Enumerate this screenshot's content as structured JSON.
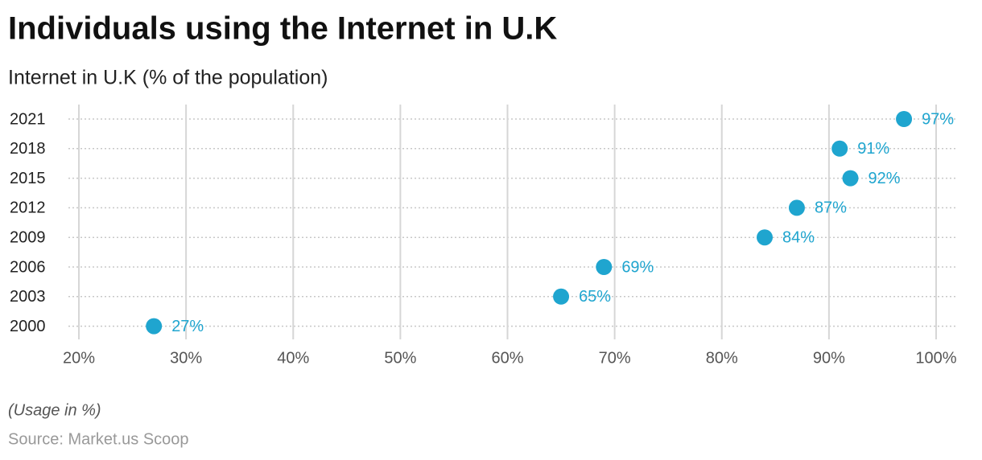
{
  "chart_data": {
    "type": "dot",
    "title": "Individuals using the Internet in U.K",
    "subtitle": "Internet in U.K (% of the population)",
    "note": "(Usage in %)",
    "source": "Source: Market.us Scoop",
    "categories": [
      "2021",
      "2018",
      "2015",
      "2012",
      "2009",
      "2006",
      "2003",
      "2000"
    ],
    "values": [
      97,
      91,
      92,
      87,
      84,
      69,
      65,
      27
    ],
    "value_labels": [
      "97%",
      "91%",
      "92%",
      "87%",
      "84%",
      "69%",
      "65%",
      "27%"
    ],
    "color": "#1fa5cf",
    "xlim": [
      20,
      100
    ],
    "xticks": [
      {
        "value": 20,
        "label": "20%"
      },
      {
        "value": 30,
        "label": "30%"
      },
      {
        "value": 40,
        "label": "40%"
      },
      {
        "value": 50,
        "label": "50%"
      },
      {
        "value": 60,
        "label": "60%"
      },
      {
        "value": 70,
        "label": "70%"
      },
      {
        "value": 80,
        "label": "80%"
      },
      {
        "value": 90,
        "label": "90%"
      },
      {
        "value": 100,
        "label": "100%"
      }
    ],
    "grid": true
  }
}
